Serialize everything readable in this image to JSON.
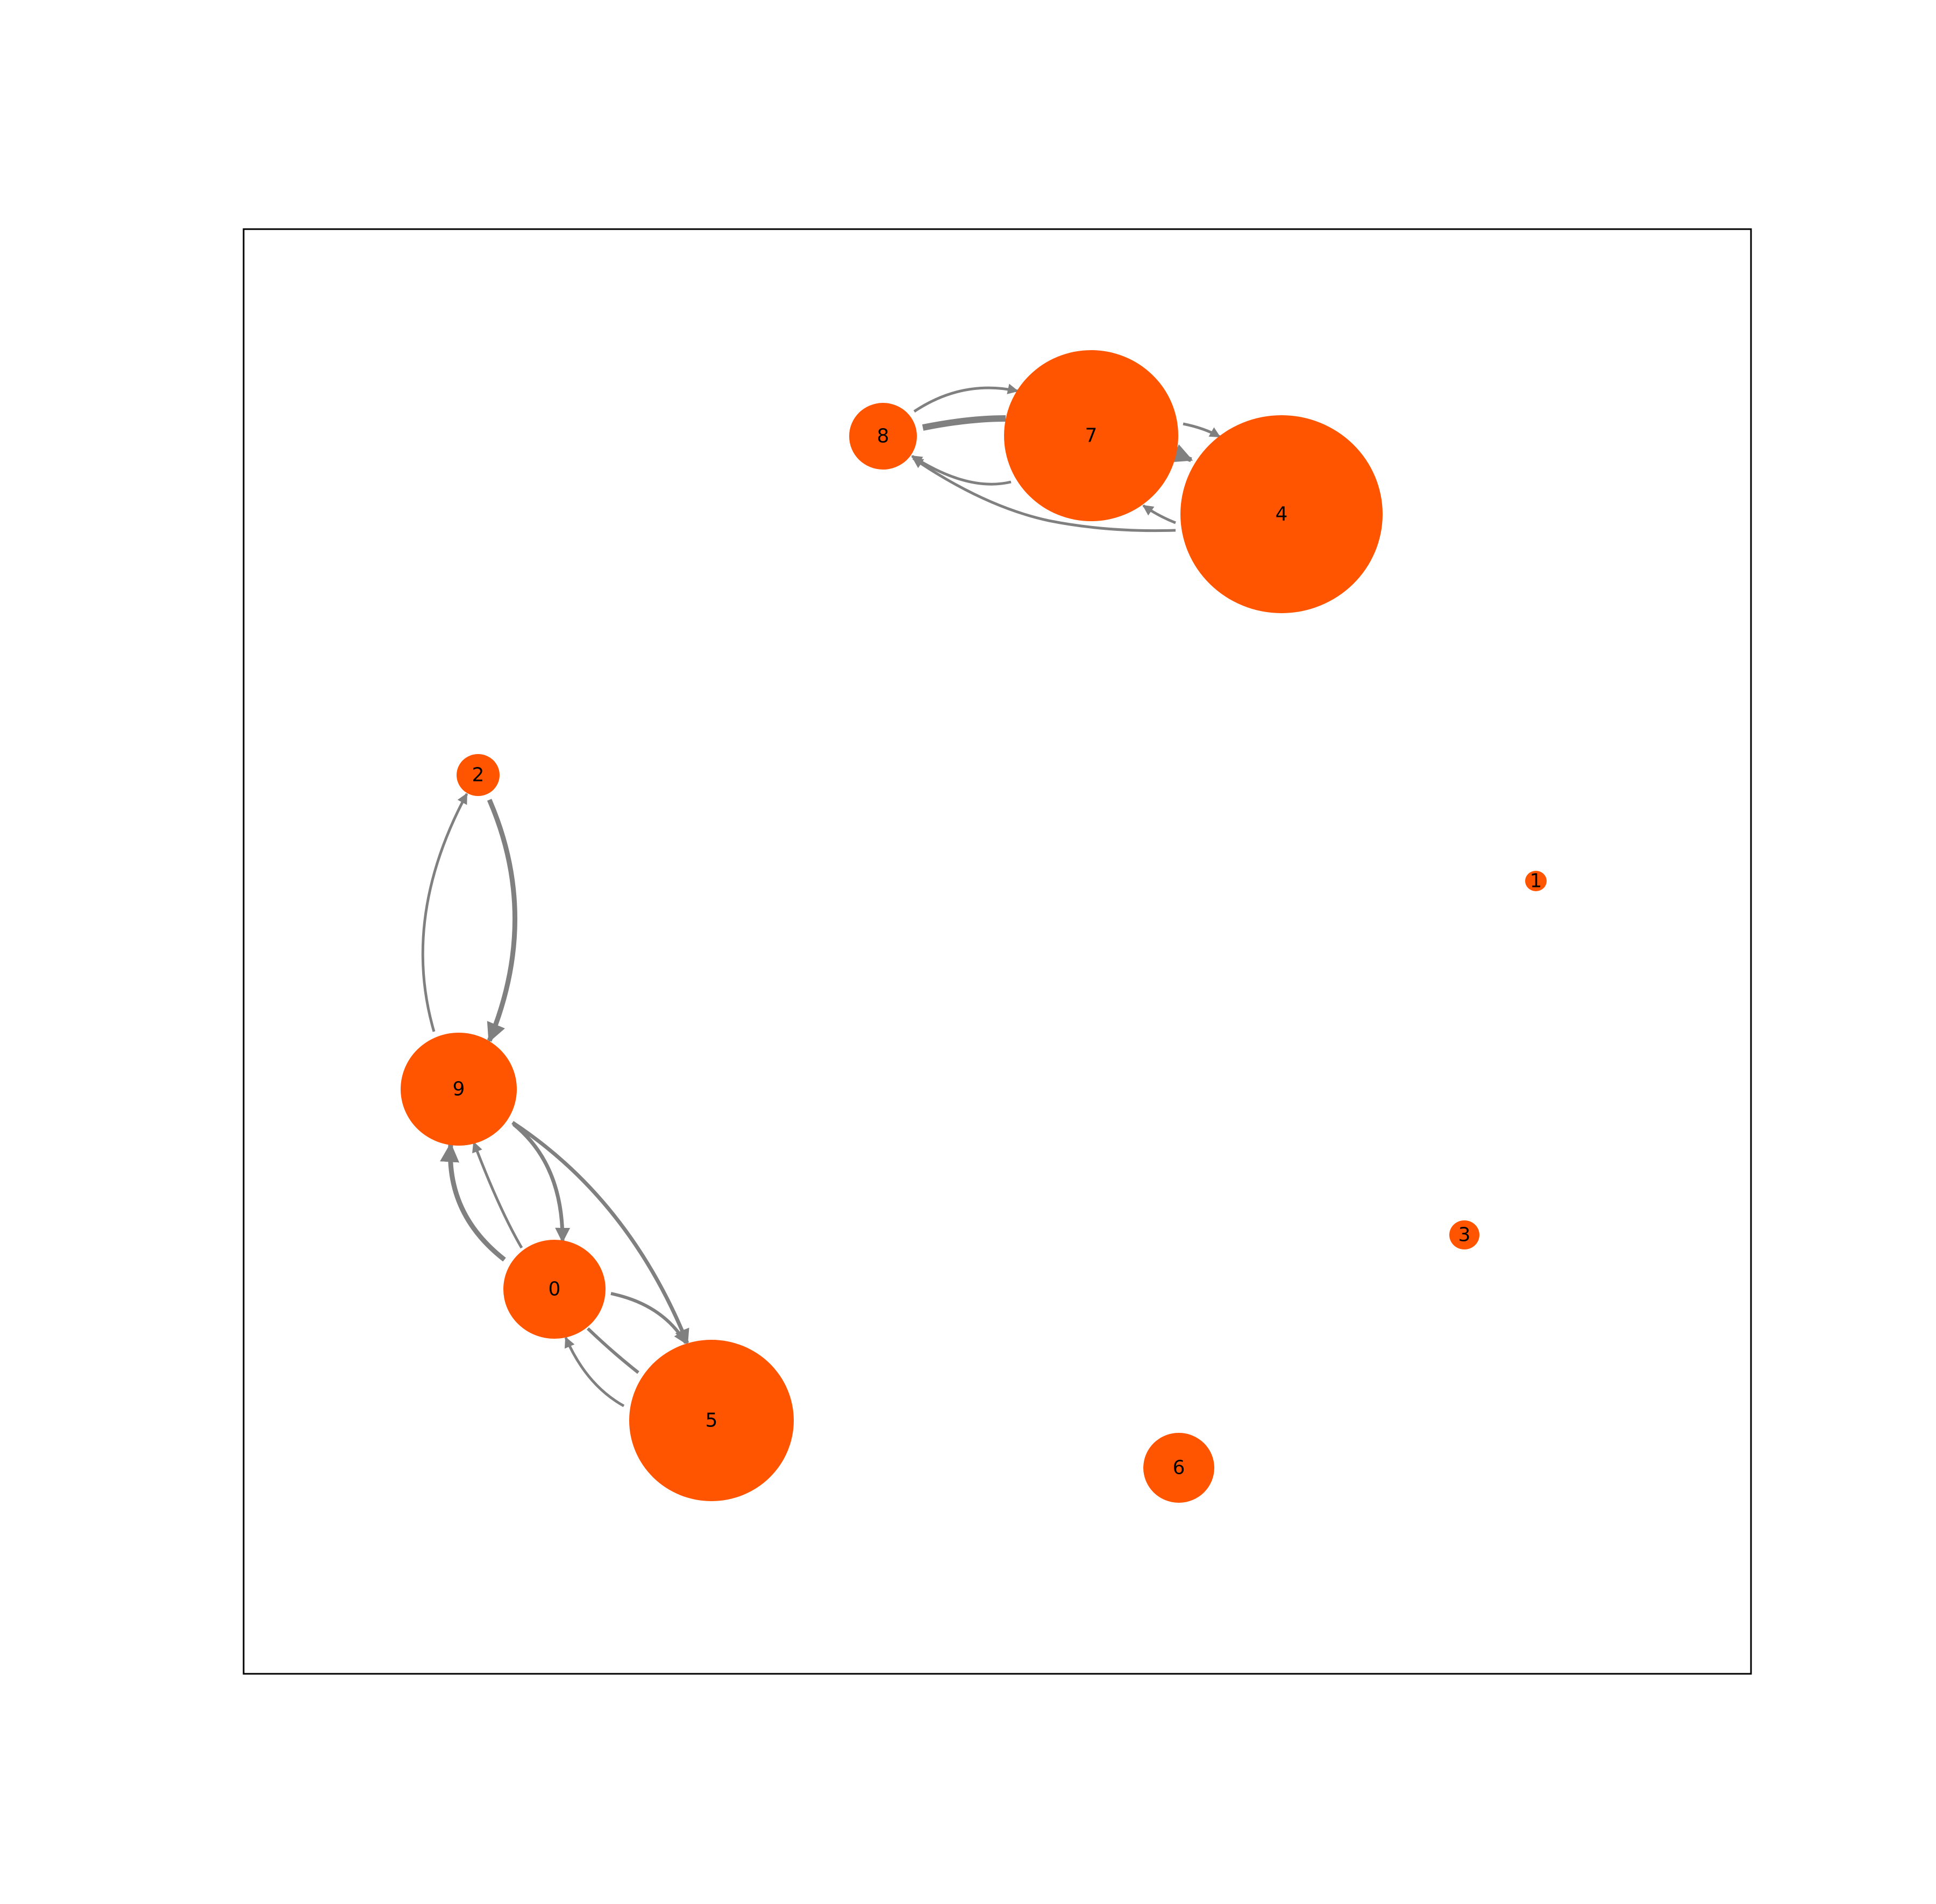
{
  "colors": {
    "node_fill": "#ff5500",
    "edge_color": "#808080",
    "frame_color": "#000000",
    "background": "#ffffff"
  },
  "nodes": [
    {
      "id": "0",
      "label": "0"
    },
    {
      "id": "1",
      "label": "1"
    },
    {
      "id": "2",
      "label": "2"
    },
    {
      "id": "3",
      "label": "3"
    },
    {
      "id": "4",
      "label": "4"
    },
    {
      "id": "5",
      "label": "5"
    },
    {
      "id": "6",
      "label": "6"
    },
    {
      "id": "7",
      "label": "7"
    },
    {
      "id": "8",
      "label": "8"
    },
    {
      "id": "9",
      "label": "9"
    }
  ],
  "edges": [
    {
      "source": "8",
      "target": "7"
    },
    {
      "source": "8",
      "target": "7"
    },
    {
      "source": "7",
      "target": "8"
    },
    {
      "source": "7",
      "target": "4"
    },
    {
      "source": "7",
      "target": "4"
    },
    {
      "source": "4",
      "target": "7"
    },
    {
      "source": "4",
      "target": "8"
    },
    {
      "source": "9",
      "target": "2"
    },
    {
      "source": "2",
      "target": "9"
    },
    {
      "source": "9",
      "target": "0"
    },
    {
      "source": "0",
      "target": "9"
    },
    {
      "source": "0",
      "target": "9"
    },
    {
      "source": "9",
      "target": "5"
    },
    {
      "source": "0",
      "target": "5"
    },
    {
      "source": "5",
      "target": "0"
    },
    {
      "source": "5",
      "target": "9"
    }
  ]
}
